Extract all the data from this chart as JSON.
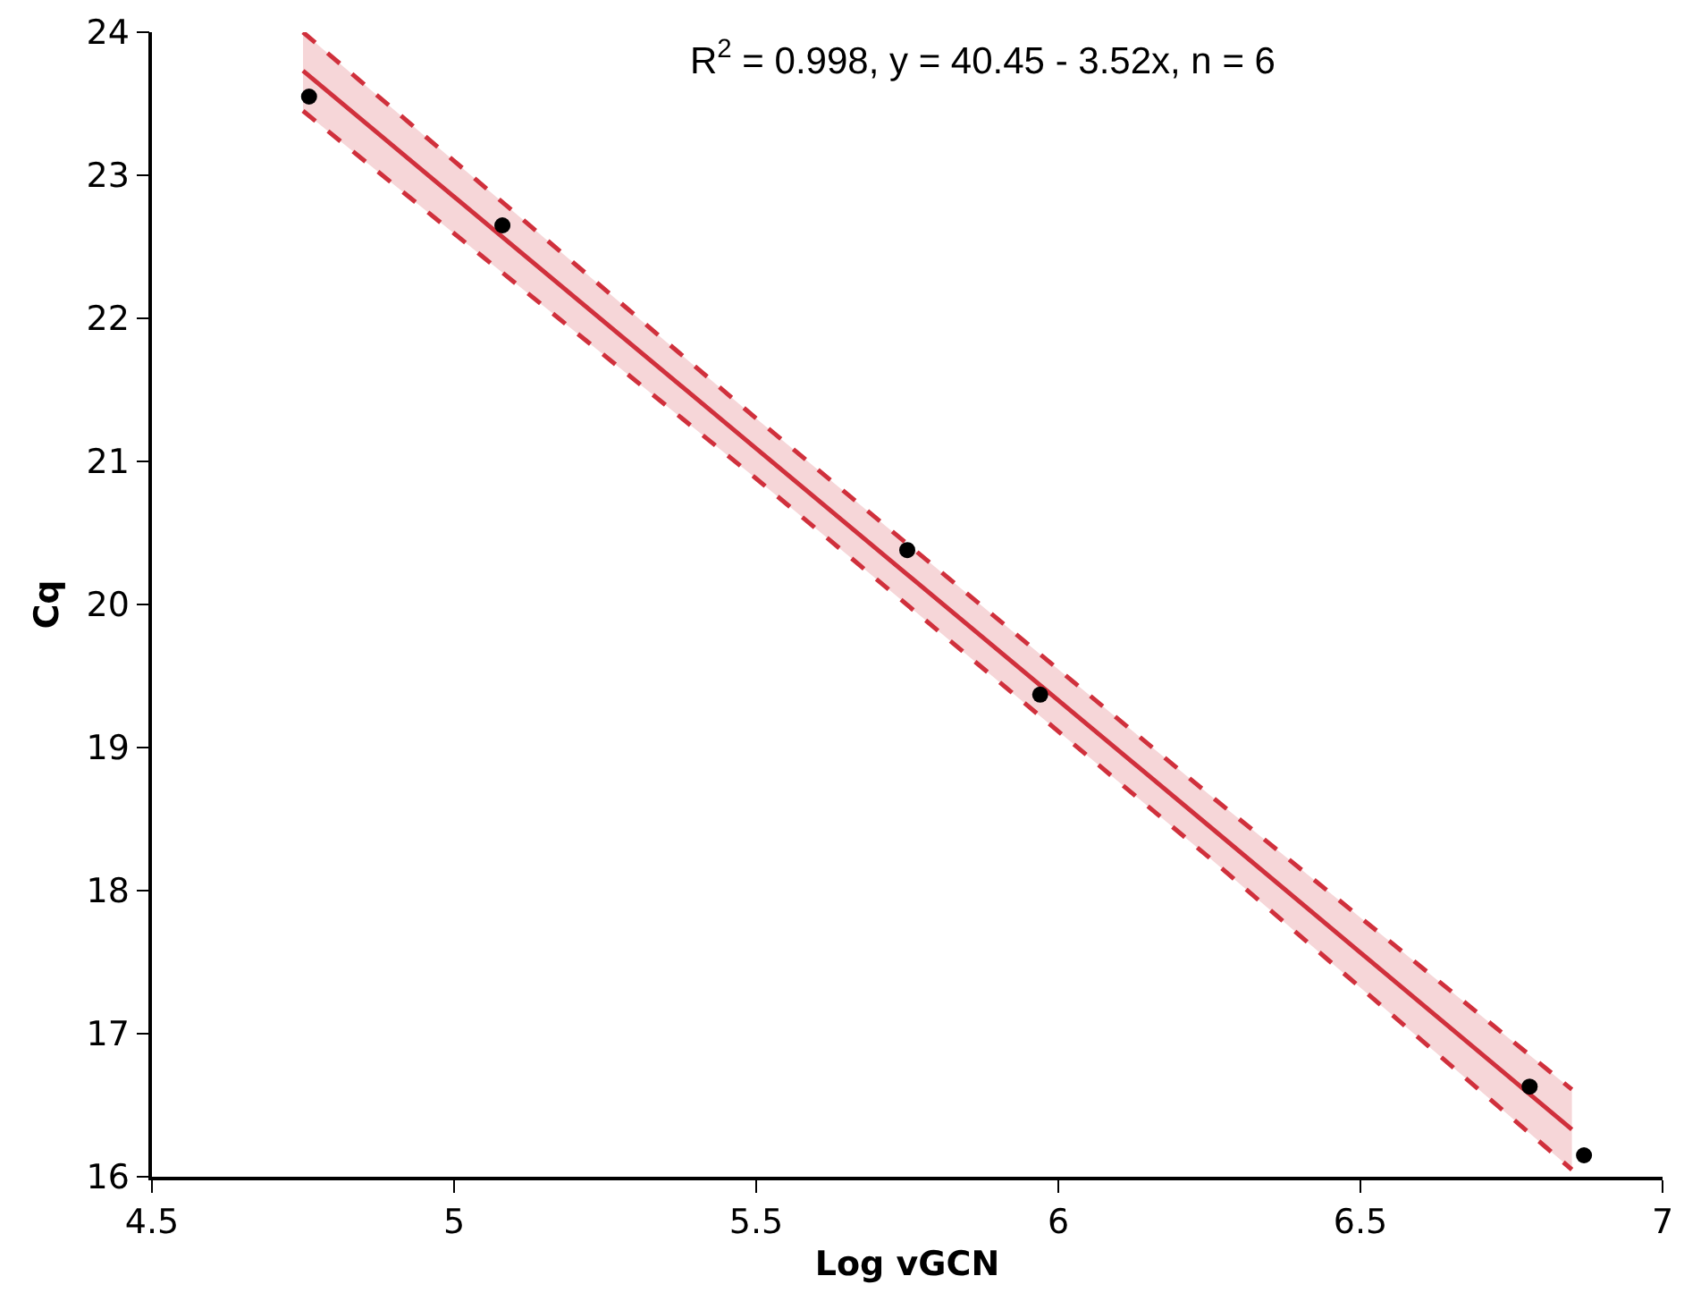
{
  "chart_data": {
    "type": "scatter",
    "xlabel": "Log vGCN",
    "ylabel": "Cq",
    "annotations": [
      "R$^{2}$ = 0.998, y = 40.45 - 3.52x, n = 6"
    ],
    "xlim": [
      4.5,
      7
    ],
    "xticks": [
      4.5,
      5,
      5.5,
      6,
      6.5,
      7
    ],
    "ylim": [
      16,
      24
    ],
    "yticks": [
      16,
      17,
      18,
      19,
      20,
      21,
      22,
      23,
      24
    ],
    "grid": false,
    "series": [
      {
        "type": "line",
        "color": "#d0303c",
        "line_style": "solid",
        "marker": "none",
        "x": [
          4.75,
          5.5,
          6.25,
          6.85
        ],
        "values": [
          23.73,
          21.09,
          18.45,
          16.33
        ],
        "lower": [
          23.45,
          20.88,
          18.23,
          16.05
        ],
        "upper": [
          24.0,
          21.3,
          18.67,
          16.61
        ]
      },
      {
        "type": "line",
        "color": "#d0303c",
        "line_style": "dashed",
        "marker": "none",
        "x": [
          4.75,
          5.5,
          6.25,
          6.85
        ],
        "values": [
          23.45,
          20.88,
          18.23,
          16.05
        ]
      },
      {
        "type": "line",
        "color": "#d0303c",
        "line_style": "dashed",
        "marker": "none",
        "x": [
          4.75,
          5.5,
          6.25,
          6.85
        ],
        "values": [
          24.0,
          21.3,
          18.67,
          16.61
        ]
      },
      {
        "marker": "circle",
        "color": "#000000",
        "x": [
          4.76,
          5.08,
          5.75,
          5.97,
          6.78,
          6.87
        ],
        "values": [
          23.55,
          22.65,
          20.38,
          19.37,
          16.63,
          16.15
        ]
      }
    ]
  }
}
